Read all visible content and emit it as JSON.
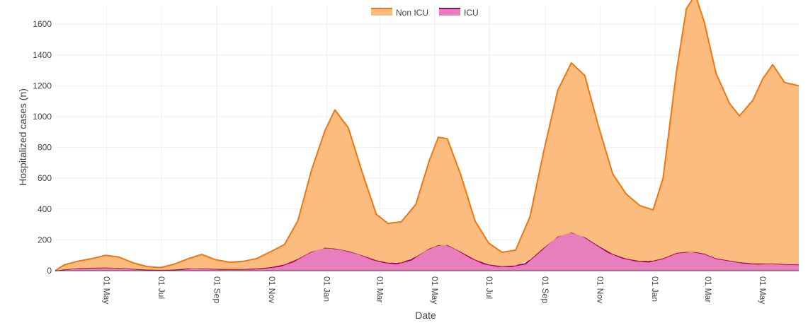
{
  "chart_data": {
    "type": "area",
    "title": "",
    "xlabel": "Date",
    "ylabel": "Hospitalized cases (n)",
    "xlim": [
      "2020-03-05",
      "2022-06-10"
    ],
    "ylim": [
      0,
      1720
    ],
    "stacked": true,
    "grid": true,
    "legend_position": "top-center",
    "y_ticks": [
      0,
      200,
      400,
      600,
      800,
      1000,
      1200,
      1400,
      1600
    ],
    "x_ticks": [
      {
        "date": "2020-05-01",
        "label": "01 May"
      },
      {
        "date": "2020-07-01",
        "label": "01 Jul"
      },
      {
        "date": "2020-09-01",
        "label": "01 Sep"
      },
      {
        "date": "2020-11-01",
        "label": "01 Nov"
      },
      {
        "date": "2021-01-01",
        "label": "01 Jan"
      },
      {
        "date": "2021-03-01",
        "label": "01 Mar"
      },
      {
        "date": "2021-05-01",
        "label": "01 May"
      },
      {
        "date": "2021-07-01",
        "label": "01 Jul"
      },
      {
        "date": "2021-09-01",
        "label": "01 Sep"
      },
      {
        "date": "2021-11-01",
        "label": "01 Nov"
      },
      {
        "date": "2022-01-01",
        "label": "01 Jan"
      },
      {
        "date": "2022-03-01",
        "label": "01 Mar"
      },
      {
        "date": "2022-05-01",
        "label": "01 May"
      }
    ],
    "series": [
      {
        "name": "ICU",
        "fill_color": "#e87fbd",
        "line_color": "#a3006e",
        "points": [
          [
            "2020-03-05",
            0
          ],
          [
            "2020-03-15",
            8
          ],
          [
            "2020-03-25",
            15
          ],
          [
            "2020-04-10",
            18
          ],
          [
            "2020-04-25",
            20
          ],
          [
            "2020-05-10",
            20
          ],
          [
            "2020-05-25",
            14
          ],
          [
            "2020-06-10",
            8
          ],
          [
            "2020-06-25",
            5
          ],
          [
            "2020-07-10",
            5
          ],
          [
            "2020-07-25",
            10
          ],
          [
            "2020-08-05",
            18
          ],
          [
            "2020-08-20",
            14
          ],
          [
            "2020-09-05",
            10
          ],
          [
            "2020-09-25",
            10
          ],
          [
            "2020-10-10",
            12
          ],
          [
            "2020-10-25",
            18
          ],
          [
            "2020-11-10",
            30
          ],
          [
            "2020-11-25",
            60
          ],
          [
            "2020-12-10",
            110
          ],
          [
            "2020-12-25",
            150
          ],
          [
            "2021-01-05",
            148
          ],
          [
            "2021-01-20",
            135
          ],
          [
            "2021-02-05",
            110
          ],
          [
            "2021-02-20",
            75
          ],
          [
            "2021-03-05",
            55
          ],
          [
            "2021-03-20",
            45
          ],
          [
            "2021-04-05",
            70
          ],
          [
            "2021-04-20",
            130
          ],
          [
            "2021-05-01",
            160
          ],
          [
            "2021-05-12",
            175
          ],
          [
            "2021-05-25",
            140
          ],
          [
            "2021-06-10",
            85
          ],
          [
            "2021-06-25",
            45
          ],
          [
            "2021-07-10",
            30
          ],
          [
            "2021-07-25",
            28
          ],
          [
            "2021-08-10",
            45
          ],
          [
            "2021-08-25",
            120
          ],
          [
            "2021-09-10",
            205
          ],
          [
            "2021-09-25",
            255
          ],
          [
            "2021-10-10",
            235
          ],
          [
            "2021-10-25",
            180
          ],
          [
            "2021-11-10",
            120
          ],
          [
            "2021-11-25",
            85
          ],
          [
            "2021-12-10",
            65
          ],
          [
            "2021-12-25",
            58
          ],
          [
            "2022-01-10",
            80
          ],
          [
            "2022-01-25",
            115
          ],
          [
            "2022-02-10",
            125
          ],
          [
            "2022-02-25",
            110
          ],
          [
            "2022-03-10",
            80
          ],
          [
            "2022-03-25",
            65
          ],
          [
            "2022-04-10",
            50
          ],
          [
            "2022-04-25",
            45
          ],
          [
            "2022-05-10",
            48
          ],
          [
            "2022-05-25",
            42
          ],
          [
            "2022-06-10",
            40
          ]
        ]
      },
      {
        "name": "Non ICU",
        "fill_color": "#fdbc7f",
        "line_color": "#f5750a",
        "points": [
          [
            "2020-03-05",
            0
          ],
          [
            "2020-03-15",
            30
          ],
          [
            "2020-03-30",
            45
          ],
          [
            "2020-04-15",
            60
          ],
          [
            "2020-04-30",
            80
          ],
          [
            "2020-05-15",
            70
          ],
          [
            "2020-05-30",
            40
          ],
          [
            "2020-06-15",
            20
          ],
          [
            "2020-06-30",
            15
          ],
          [
            "2020-07-15",
            35
          ],
          [
            "2020-08-01",
            65
          ],
          [
            "2020-08-15",
            90
          ],
          [
            "2020-08-30",
            60
          ],
          [
            "2020-09-15",
            45
          ],
          [
            "2020-09-30",
            50
          ],
          [
            "2020-10-15",
            65
          ],
          [
            "2020-10-30",
            100
          ],
          [
            "2020-11-15",
            130
          ],
          [
            "2020-11-30",
            250
          ],
          [
            "2020-12-15",
            530
          ],
          [
            "2020-12-30",
            760
          ],
          [
            "2021-01-10",
            900
          ],
          [
            "2021-01-25",
            800
          ],
          [
            "2021-02-10",
            530
          ],
          [
            "2021-02-25",
            300
          ],
          [
            "2021-03-10",
            255
          ],
          [
            "2021-03-25",
            265
          ],
          [
            "2021-04-10",
            340
          ],
          [
            "2021-04-25",
            570
          ],
          [
            "2021-05-05",
            700
          ],
          [
            "2021-05-15",
            690
          ],
          [
            "2021-05-30",
            500
          ],
          [
            "2021-06-15",
            250
          ],
          [
            "2021-06-30",
            140
          ],
          [
            "2021-07-15",
            90
          ],
          [
            "2021-07-30",
            100
          ],
          [
            "2021-08-15",
            280
          ],
          [
            "2021-08-30",
            620
          ],
          [
            "2021-09-15",
            950
          ],
          [
            "2021-09-30",
            1100
          ],
          [
            "2021-10-15",
            1050
          ],
          [
            "2021-10-30",
            780
          ],
          [
            "2021-11-15",
            520
          ],
          [
            "2021-11-30",
            420
          ],
          [
            "2021-12-15",
            360
          ],
          [
            "2021-12-30",
            330
          ],
          [
            "2022-01-10",
            520
          ],
          [
            "2022-01-25",
            1180
          ],
          [
            "2022-02-05",
            1580
          ],
          [
            "2022-02-15",
            1670
          ],
          [
            "2022-02-25",
            1500
          ],
          [
            "2022-03-10",
            1200
          ],
          [
            "2022-03-25",
            1020
          ],
          [
            "2022-04-05",
            950
          ],
          [
            "2022-04-20",
            1060
          ],
          [
            "2022-05-01",
            1200
          ],
          [
            "2022-05-12",
            1290
          ],
          [
            "2022-05-25",
            1180
          ],
          [
            "2022-06-10",
            1160
          ]
        ]
      }
    ]
  },
  "legend": [
    {
      "label": "Non ICU",
      "color": "#fdbc7f",
      "line_color": "#f5750a"
    },
    {
      "label": "ICU",
      "color": "#e87fbd",
      "line_color": "#a3006e"
    }
  ]
}
